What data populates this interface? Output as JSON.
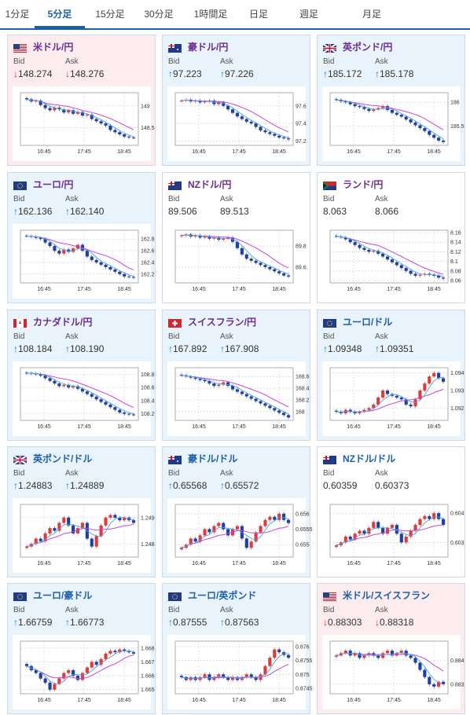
{
  "tabs": [
    {
      "label": "1分足",
      "active": false
    },
    {
      "label": "5分足",
      "active": true
    },
    {
      "label": "15分足",
      "active": false
    },
    {
      "label": "30分足",
      "active": false
    },
    {
      "label": "1時間足",
      "active": false
    },
    {
      "label": "日足",
      "active": false
    },
    {
      "label": "週足",
      "active": false
    },
    {
      "label": "月足",
      "active": false
    }
  ],
  "labels": {
    "bid": "Bid",
    "ask": "Ask"
  },
  "colors": {
    "up_card": "#e9f3fb",
    "down_card": "#fdecee",
    "candle_up": "#e03b3b",
    "candle_down": "#1e3fa8",
    "ma_long": "#c447d6",
    "ma_short": "#4aa3df",
    "arrow_up": "#0c7fc5",
    "arrow_down": "#d8252f"
  },
  "pairs": [
    {
      "name": "米ドル/円",
      "flags": [
        "us",
        "jp"
      ],
      "trend": "down",
      "bid": "148.274",
      "ask": "148.276",
      "chart_data": {
        "type": "candlestick",
        "x_ticks": [
          "16:45",
          "17:45",
          "18:45"
        ],
        "y_ticks": [
          "149",
          "148.5"
        ],
        "ylim": [
          148.1,
          149.3
        ],
        "closes": [
          149.15,
          149.1,
          149.12,
          149.02,
          148.95,
          148.9,
          148.96,
          148.92,
          148.85,
          148.9,
          148.82,
          148.86,
          148.78,
          148.8,
          148.7,
          148.65,
          148.6,
          148.55,
          148.45,
          148.4,
          148.35,
          148.3,
          148.28,
          148.27
        ]
      }
    },
    {
      "name": "豪ドル/円",
      "flags": [
        "au",
        "jp"
      ],
      "trend": "up",
      "bid": "97.223",
      "ask": "97.226",
      "chart_data": {
        "type": "candlestick",
        "x_ticks": [
          "16:45",
          "17:45",
          "18:45"
        ],
        "y_ticks": [
          "97.6",
          "97.4",
          "97.2"
        ],
        "ylim": [
          97.15,
          97.75
        ],
        "closes": [
          97.66,
          97.67,
          97.65,
          97.66,
          97.64,
          97.65,
          97.66,
          97.62,
          97.64,
          97.6,
          97.56,
          97.52,
          97.48,
          97.45,
          97.42,
          97.4,
          97.36,
          97.32,
          97.3,
          97.28,
          97.26,
          97.24,
          97.23,
          97.22
        ]
      }
    },
    {
      "name": "英ポンド/円",
      "flags": [
        "gb",
        "jp"
      ],
      "trend": "up",
      "bid": "185.172",
      "ask": "185.178",
      "chart_data": {
        "type": "candlestick",
        "x_ticks": [
          "16:45",
          "17:45",
          "18:45"
        ],
        "y_ticks": [
          "186",
          "185.5"
        ],
        "ylim": [
          185.1,
          186.2
        ],
        "closes": [
          186.05,
          186.02,
          186.0,
          185.96,
          185.92,
          185.9,
          185.86,
          185.82,
          185.85,
          185.88,
          185.92,
          185.84,
          185.78,
          185.74,
          185.7,
          185.64,
          185.58,
          185.52,
          185.46,
          185.4,
          185.32,
          185.26,
          185.2,
          185.17
        ]
      }
    },
    {
      "name": "ユーロ/円",
      "flags": [
        "eu",
        "jp"
      ],
      "trend": "up",
      "bid": "162.136",
      "ask": "162.140",
      "chart_data": {
        "type": "candlestick",
        "x_ticks": [
          "16:45",
          "17:45",
          "18:45"
        ],
        "y_ticks": [
          "162.8",
          "162.6",
          "162.4",
          "162.2"
        ],
        "ylim": [
          162.05,
          162.95
        ],
        "closes": [
          162.85,
          162.84,
          162.82,
          162.8,
          162.74,
          162.68,
          162.6,
          162.55,
          162.62,
          162.58,
          162.64,
          162.7,
          162.6,
          162.5,
          162.44,
          162.4,
          162.36,
          162.32,
          162.28,
          162.24,
          162.2,
          162.16,
          162.15,
          162.14
        ]
      }
    },
    {
      "name": "NZドル/円",
      "flags": [
        "nz",
        "jp"
      ],
      "trend": "flat",
      "bid": "89.506",
      "ask": "89.513",
      "chart_data": {
        "type": "candlestick",
        "x_ticks": [
          "16:45",
          "17:45",
          "18:45"
        ],
        "y_ticks": [
          "89.8",
          "89.6"
        ],
        "ylim": [
          89.45,
          89.95
        ],
        "closes": [
          89.9,
          89.91,
          89.89,
          89.9,
          89.88,
          89.89,
          89.87,
          89.88,
          89.86,
          89.87,
          89.88,
          89.84,
          89.78,
          89.72,
          89.68,
          89.66,
          89.64,
          89.62,
          89.6,
          89.58,
          89.56,
          89.54,
          89.52,
          89.51
        ]
      }
    },
    {
      "name": "ランド/円",
      "flags": [
        "za",
        "jp"
      ],
      "trend": "flat",
      "bid": "8.063",
      "ask": "8.066",
      "chart_data": {
        "type": "candlestick",
        "x_ticks": [
          "16:45",
          "17:45",
          "18:45"
        ],
        "y_ticks": [
          "8.16",
          "8.14",
          "8.12",
          "8.1",
          "8.08",
          "8.06"
        ],
        "ylim": [
          8.055,
          8.165
        ],
        "closes": [
          8.152,
          8.15,
          8.146,
          8.14,
          8.134,
          8.128,
          8.124,
          8.12,
          8.122,
          8.116,
          8.11,
          8.104,
          8.098,
          8.092,
          8.086,
          8.08,
          8.074,
          8.07,
          8.072,
          8.074,
          8.072,
          8.07,
          8.066,
          8.064
        ]
      }
    },
    {
      "name": "カナダドル/円",
      "flags": [
        "ca",
        "jp"
      ],
      "trend": "up",
      "bid": "108.184",
      "ask": "108.190",
      "chart_data": {
        "type": "candlestick",
        "x_ticks": [
          "16:45",
          "17:45",
          "18:45"
        ],
        "y_ticks": [
          "108.8",
          "108.6",
          "108.4",
          "108.2"
        ],
        "ylim": [
          108.1,
          108.9
        ],
        "closes": [
          108.82,
          108.81,
          108.8,
          108.78,
          108.74,
          108.7,
          108.66,
          108.62,
          108.64,
          108.6,
          108.62,
          108.58,
          108.54,
          108.5,
          108.46,
          108.42,
          108.38,
          108.34,
          108.3,
          108.26,
          108.22,
          108.2,
          108.19,
          108.18
        ]
      }
    },
    {
      "name": "スイスフラン/円",
      "flags": [
        "ch",
        "jp"
      ],
      "trend": "up",
      "bid": "167.892",
      "ask": "167.908",
      "chart_data": {
        "type": "candlestick",
        "x_ticks": [
          "16:45",
          "17:45",
          "18:45"
        ],
        "y_ticks": [
          "168.6",
          "168.4",
          "168.2",
          "168"
        ],
        "ylim": [
          167.85,
          168.75
        ],
        "closes": [
          168.62,
          168.6,
          168.58,
          168.56,
          168.54,
          168.52,
          168.48,
          168.44,
          168.46,
          168.5,
          168.44,
          168.38,
          168.34,
          168.3,
          168.26,
          168.22,
          168.18,
          168.14,
          168.1,
          168.06,
          168.02,
          167.98,
          167.94,
          167.9
        ]
      }
    },
    {
      "name": "ユーロ/ドル",
      "flags": [
        "eu",
        "us"
      ],
      "trend": "up",
      "bid": "1.09348",
      "ask": "1.09351",
      "chart_data": {
        "type": "candlestick",
        "x_ticks": [
          "16:45",
          "17:45",
          "18:45"
        ],
        "y_ticks": [
          "1.094",
          "1.093",
          "1.092"
        ],
        "ylim": [
          1.0913,
          1.0943
        ],
        "closes": [
          1.0918,
          1.0917,
          1.0919,
          1.0918,
          1.0917,
          1.0918,
          1.0919,
          1.092,
          1.0922,
          1.0926,
          1.093,
          1.0928,
          1.0927,
          1.0926,
          1.0925,
          1.0922,
          1.0921,
          1.0925,
          1.093,
          1.0934,
          1.0938,
          1.094,
          1.0937,
          1.0935
        ]
      }
    },
    {
      "name": "英ポンド/ドル",
      "flags": [
        "gb",
        "us"
      ],
      "trend": "up",
      "bid": "1.24883",
      "ask": "1.24889",
      "chart_data": {
        "type": "candlestick",
        "x_ticks": [
          "16:45",
          "17:45",
          "18:45"
        ],
        "y_ticks": [
          "1.249",
          "1.248"
        ],
        "ylim": [
          1.2475,
          1.2495
        ],
        "closes": [
          1.2479,
          1.248,
          1.2482,
          1.2481,
          1.2484,
          1.2486,
          1.2485,
          1.2488,
          1.249,
          1.2487,
          1.2484,
          1.2486,
          1.2488,
          1.2482,
          1.2479,
          1.2483,
          1.2487,
          1.249,
          1.2491,
          1.249,
          1.2489,
          1.249,
          1.2489,
          1.2488
        ]
      }
    },
    {
      "name": "豪ドル/ドル",
      "flags": [
        "au",
        "us"
      ],
      "trend": "up",
      "bid": "0.65568",
      "ask": "0.65572",
      "chart_data": {
        "type": "candlestick",
        "x_ticks": [
          "16:45",
          "17:45",
          "18:45"
        ],
        "y_ticks": [
          "0.656",
          "0.6555",
          "0.655"
        ],
        "ylim": [
          0.6546,
          0.6563
        ],
        "closes": [
          0.6549,
          0.655,
          0.6552,
          0.6551,
          0.6553,
          0.6555,
          0.6554,
          0.6556,
          0.6557,
          0.6555,
          0.6553,
          0.6555,
          0.6556,
          0.6552,
          0.6549,
          0.6551,
          0.6554,
          0.6556,
          0.6558,
          0.6559,
          0.6558,
          0.656,
          0.6558,
          0.6557
        ]
      }
    },
    {
      "name": "NZドル/ドル",
      "flags": [
        "nz",
        "us"
      ],
      "trend": "flat",
      "bid": "0.60359",
      "ask": "0.60373",
      "chart_data": {
        "type": "candlestick",
        "x_ticks": [
          "16:45",
          "17:45",
          "18:45"
        ],
        "y_ticks": [
          "0.604",
          "0.603"
        ],
        "ylim": [
          0.6025,
          0.6043
        ],
        "closes": [
          0.6029,
          0.603,
          0.6032,
          0.6031,
          0.6033,
          0.6034,
          0.6033,
          0.6035,
          0.6037,
          0.6035,
          0.6033,
          0.6035,
          0.6036,
          0.6033,
          0.603,
          0.6032,
          0.6034,
          0.6036,
          0.6038,
          0.6039,
          0.6038,
          0.604,
          0.6038,
          0.6036
        ]
      }
    },
    {
      "name": "ユーロ/豪ドル",
      "flags": [
        "eu",
        "au"
      ],
      "trend": "up",
      "bid": "1.66759",
      "ask": "1.66773",
      "chart_data": {
        "type": "candlestick",
        "x_ticks": [
          "16:45",
          "17:45",
          "18:45"
        ],
        "y_ticks": [
          "1.668",
          "1.667",
          "1.666",
          "1.665"
        ],
        "ylim": [
          1.6647,
          1.6685
        ],
        "closes": [
          1.6667,
          1.6664,
          1.6662,
          1.6658,
          1.6655,
          1.665,
          1.6654,
          1.6658,
          1.6662,
          1.6664,
          1.666,
          1.6657,
          1.6662,
          1.6666,
          1.667,
          1.6668,
          1.6672,
          1.6676,
          1.6678,
          1.6677,
          1.6679,
          1.6678,
          1.6677,
          1.6676
        ]
      }
    },
    {
      "name": "ユーロ/英ポンド",
      "flags": [
        "eu",
        "gb"
      ],
      "trend": "up",
      "bid": "0.87555",
      "ask": "0.87563",
      "chart_data": {
        "type": "candlestick",
        "x_ticks": [
          "16:45",
          "17:45",
          "18:45"
        ],
        "y_ticks": [
          "0.876",
          "0.8755",
          "0.875",
          "0.8745"
        ],
        "ylim": [
          0.8743,
          0.8762
        ],
        "closes": [
          0.8749,
          0.8748,
          0.8749,
          0.8748,
          0.8749,
          0.875,
          0.8748,
          0.8749,
          0.875,
          0.8749,
          0.8748,
          0.8749,
          0.8748,
          0.8749,
          0.875,
          0.8749,
          0.8748,
          0.875,
          0.8753,
          0.8756,
          0.8759,
          0.8758,
          0.8757,
          0.8756
        ]
      }
    },
    {
      "name": "米ドル/スイスフラン",
      "flags": [
        "us",
        "ch"
      ],
      "trend": "down",
      "bid": "0.88303",
      "ask": "0.88318",
      "chart_data": {
        "type": "candlestick",
        "x_ticks": [
          "16:45",
          "17:45",
          "18:45"
        ],
        "y_ticks": [
          "0.884",
          "0.883"
        ],
        "ylim": [
          0.8826,
          0.8848
        ],
        "closes": [
          0.8842,
          0.8843,
          0.8844,
          0.8842,
          0.8843,
          0.8841,
          0.8842,
          0.8843,
          0.8842,
          0.8841,
          0.8843,
          0.8844,
          0.8842,
          0.8843,
          0.8844,
          0.8842,
          0.8841,
          0.8839,
          0.8836,
          0.8833,
          0.883,
          0.8829,
          0.8831,
          0.883
        ]
      }
    }
  ]
}
